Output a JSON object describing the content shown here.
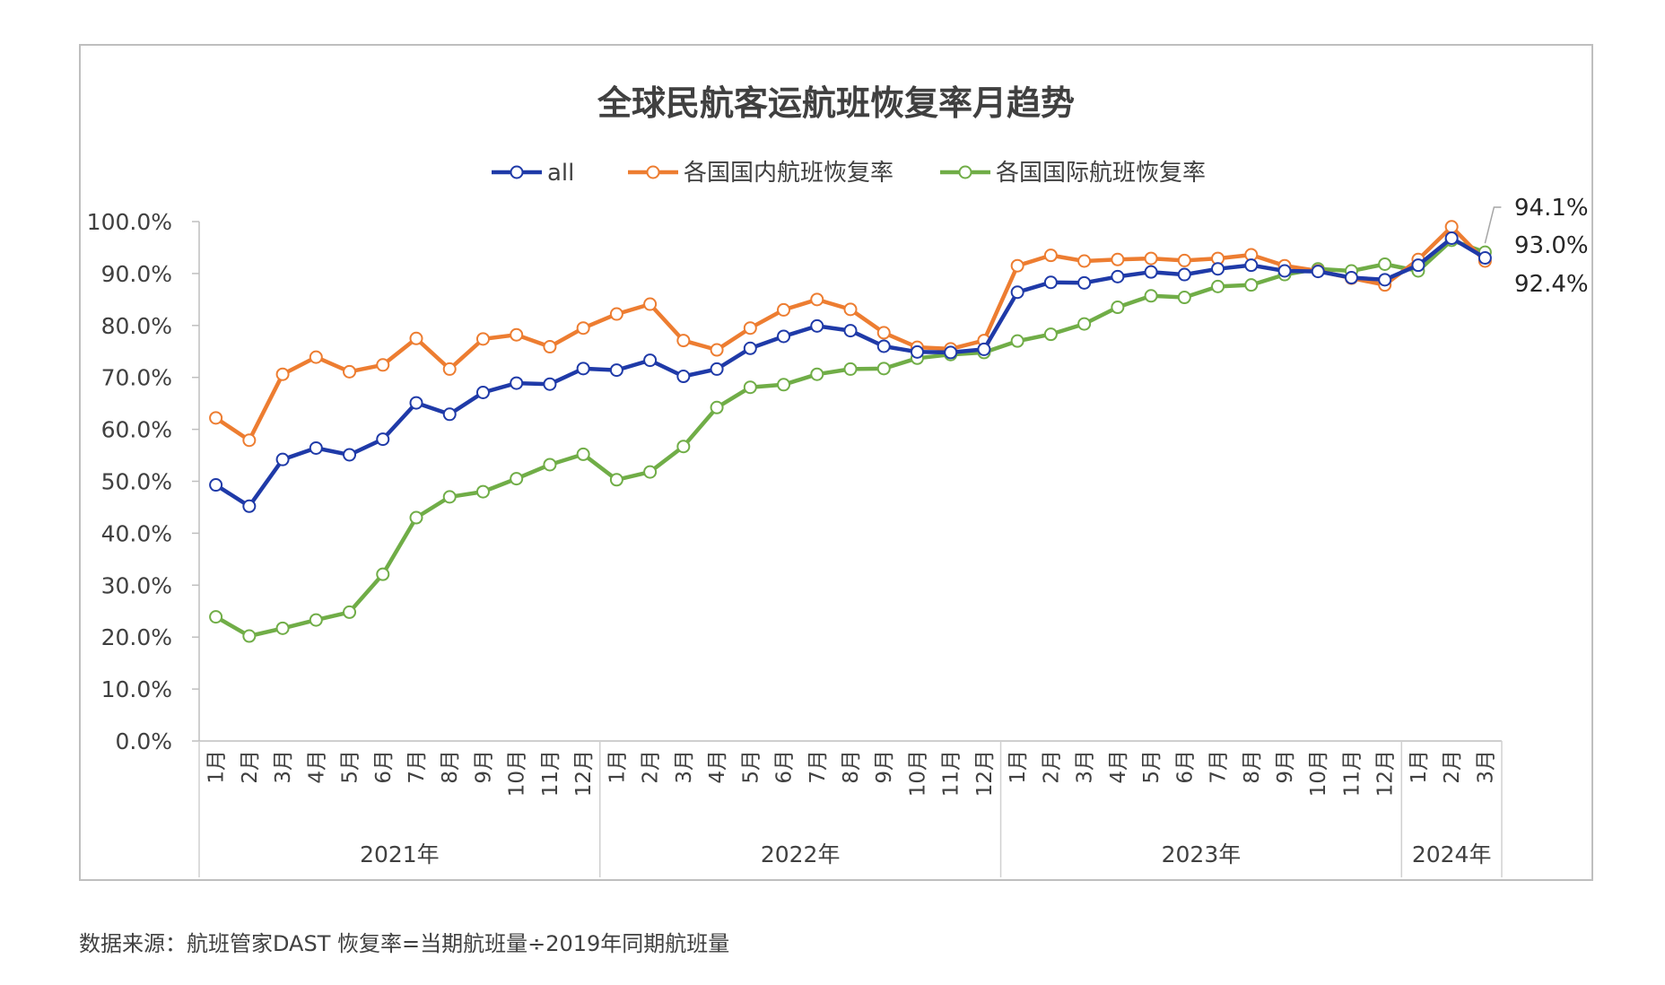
{
  "chart_data": {
    "type": "line",
    "title": "全球民航客运航班恢复率月趋势",
    "xlabel": "",
    "ylabel": "",
    "ylim": [
      0,
      100
    ],
    "ytick_labels": [
      "0.0%",
      "10.0%",
      "20.0%",
      "30.0%",
      "40.0%",
      "50.0%",
      "60.0%",
      "70.0%",
      "80.0%",
      "90.0%",
      "100.0%"
    ],
    "legend_position": "top-center",
    "grid": false,
    "year_groups": [
      {
        "label": "2021年",
        "months": [
          "1月",
          "2月",
          "3月",
          "4月",
          "5月",
          "6月",
          "7月",
          "8月",
          "9月",
          "10月",
          "11月",
          "12月"
        ]
      },
      {
        "label": "2022年",
        "months": [
          "1月",
          "2月",
          "3月",
          "4月",
          "5月",
          "6月",
          "7月",
          "8月",
          "9月",
          "10月",
          "11月",
          "12月"
        ]
      },
      {
        "label": "2023年",
        "months": [
          "1月",
          "2月",
          "3月",
          "4月",
          "5月",
          "6月",
          "7月",
          "8月",
          "9月",
          "10月",
          "11月",
          "12月"
        ]
      },
      {
        "label": "2024年",
        "months": [
          "1月",
          "2月",
          "3月"
        ]
      }
    ],
    "series": [
      {
        "name": "all",
        "color": "#1f3aa8",
        "values": [
          49.3,
          45.2,
          54.2,
          56.4,
          55.1,
          58.1,
          65.1,
          62.9,
          67.1,
          68.9,
          68.7,
          71.7,
          71.4,
          73.3,
          70.2,
          71.6,
          75.6,
          77.9,
          79.9,
          79.0,
          76.0,
          74.9,
          74.8,
          75.4,
          86.4,
          88.3,
          88.2,
          89.4,
          90.3,
          89.8,
          90.9,
          91.6,
          90.5,
          90.4,
          89.2,
          88.8,
          91.6,
          96.8,
          93.0
        ],
        "end_label": "93.0%"
      },
      {
        "name": "各国国内航班恢复率",
        "color": "#ed7d31",
        "values": [
          62.2,
          57.9,
          70.6,
          73.9,
          71.1,
          72.4,
          77.5,
          71.6,
          77.4,
          78.2,
          75.9,
          79.5,
          82.2,
          84.1,
          77.1,
          75.3,
          79.5,
          83.0,
          85.0,
          83.1,
          78.6,
          75.8,
          75.5,
          77.1,
          91.5,
          93.5,
          92.4,
          92.7,
          92.9,
          92.5,
          92.9,
          93.6,
          91.5,
          90.5,
          89.1,
          87.8,
          92.7,
          99.0,
          92.4
        ],
        "end_label": "92.4%"
      },
      {
        "name": "各国国际航班恢复率",
        "color": "#70ad47",
        "values": [
          23.9,
          20.2,
          21.7,
          23.3,
          24.8,
          32.1,
          43.0,
          47.0,
          48.0,
          50.5,
          53.2,
          55.2,
          50.3,
          51.8,
          56.7,
          64.2,
          68.1,
          68.6,
          70.6,
          71.6,
          71.7,
          73.7,
          74.4,
          74.8,
          77.0,
          78.3,
          80.3,
          83.5,
          85.7,
          85.4,
          87.5,
          87.8,
          89.8,
          90.9,
          90.5,
          91.8,
          90.5,
          96.4,
          94.1
        ],
        "end_label": "94.1%"
      }
    ]
  },
  "source_note": "数据来源：航班管家DAST 恢复率=当期航班量÷2019年同期航班量"
}
